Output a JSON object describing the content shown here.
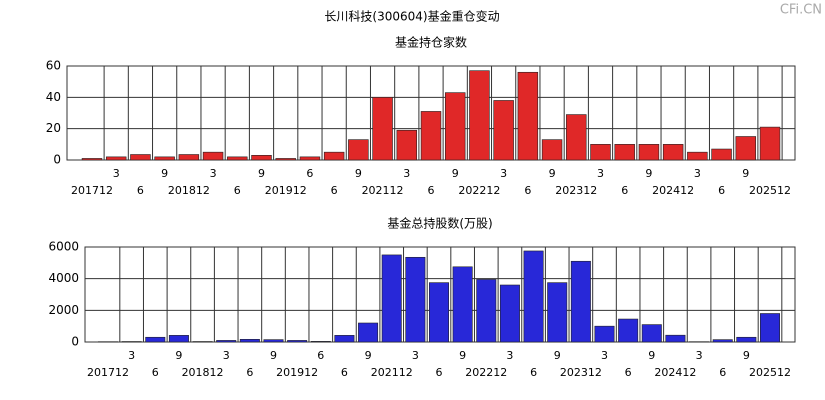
{
  "title": "长川科技(300604)基金重仓变动",
  "watermark": "CFi.CN",
  "chart_data": [
    {
      "type": "bar",
      "title": "基金持仓家数",
      "categories": [
        "201712",
        "3",
        "6",
        "9",
        "201812",
        "3",
        "6",
        "9",
        "201912",
        "6",
        "6",
        "9",
        "202112",
        "3",
        "6",
        "9",
        "202212",
        "3",
        "6",
        "9",
        "202312",
        "3",
        "6",
        "9",
        "202412",
        "3",
        "6",
        "9",
        "202512"
      ],
      "values": [
        1,
        2,
        3.5,
        2,
        3.5,
        5,
        2,
        3,
        1,
        2,
        5,
        13,
        40,
        19,
        31,
        43,
        57,
        38,
        56,
        13,
        29,
        10,
        10,
        10,
        10,
        5,
        7,
        15,
        21
      ],
      "color": "#e02828",
      "ylim": [
        0,
        60
      ],
      "yticks": [
        0,
        20,
        40,
        60
      ],
      "grid": true
    },
    {
      "type": "bar",
      "title": "基金总持股数(万股)",
      "categories": [
        "201712",
        "3",
        "6",
        "9",
        "201812",
        "3",
        "6",
        "9",
        "201912",
        "6",
        "6",
        "9",
        "202112",
        "3",
        "6",
        "9",
        "202212",
        "3",
        "6",
        "9",
        "202312",
        "3",
        "6",
        "9",
        "202412",
        "3",
        "6",
        "9",
        "202512"
      ],
      "values": [
        20,
        30,
        300,
        420,
        30,
        100,
        170,
        150,
        100,
        40,
        420,
        1200,
        5500,
        5350,
        3750,
        4750,
        3950,
        3600,
        5750,
        3750,
        5100,
        1000,
        1450,
        1100,
        430,
        20,
        150,
        300,
        1800
      ],
      "color": "#2828d8",
      "ylim": [
        0,
        6000
      ],
      "yticks": [
        0,
        2000,
        4000,
        6000
      ],
      "grid": true
    }
  ]
}
